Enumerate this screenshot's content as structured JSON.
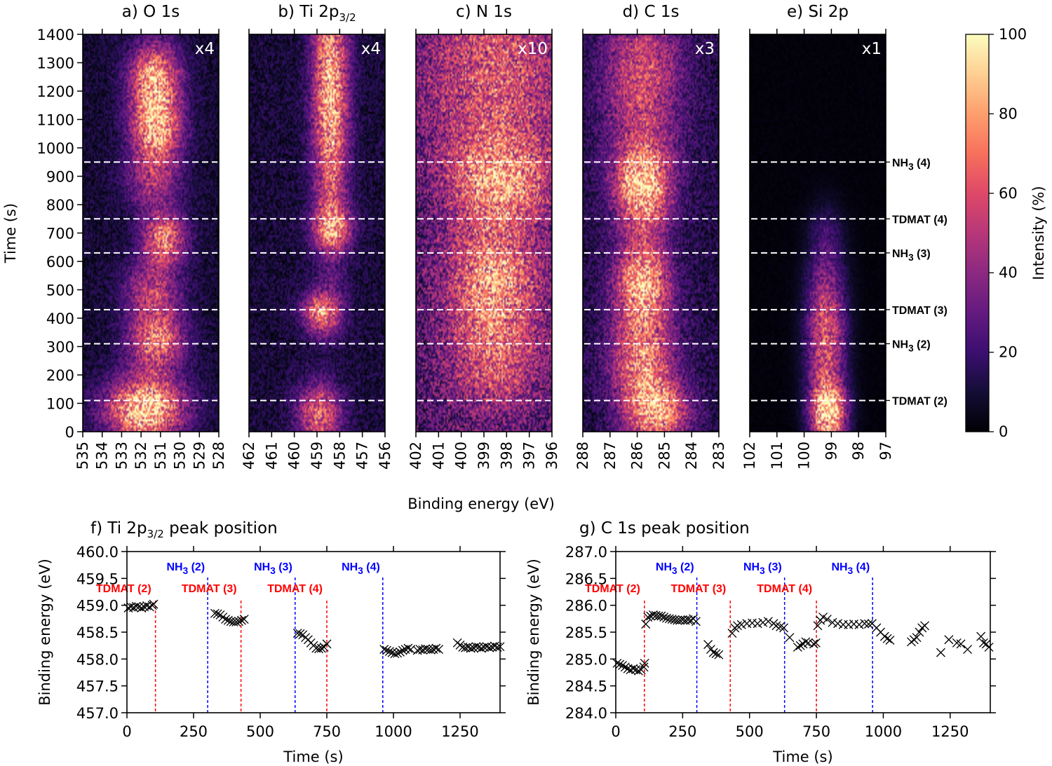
{
  "chart_data": [
    {
      "type": "heatmap",
      "shared": {
        "ylabel": "Time (s)",
        "yticks": [
          0,
          100,
          200,
          300,
          400,
          500,
          600,
          700,
          800,
          900,
          1000,
          1100,
          1200,
          1300,
          1400
        ],
        "ylim": [
          0,
          1400
        ],
        "xlabel": "Binding energy (eV)",
        "colormap": "magma",
        "colorbar": {
          "label": "Intensity (%)",
          "ticks": [
            0,
            20,
            40,
            60,
            80,
            100
          ],
          "range": [
            0,
            100
          ]
        },
        "event_lines": [
          {
            "label": "TDMAT (2)",
            "time": 110
          },
          {
            "label": "NH3 (2)",
            "time": 310
          },
          {
            "label": "TDMAT (3)",
            "time": 430
          },
          {
            "label": "NH3 (3)",
            "time": 630
          },
          {
            "label": "TDMAT (4)",
            "time": 750
          },
          {
            "label": "NH3 (4)",
            "time": 950
          }
        ]
      },
      "panels": [
        {
          "id": "a",
          "title_pre": "a) O 1s",
          "title_sub": "",
          "scale": "x4",
          "xlim": [
            535,
            528
          ],
          "xticks": [
            535,
            534,
            533,
            532,
            531,
            530,
            529,
            528
          ],
          "noise": 0.18,
          "blobs": [
            [
              531.3,
              1240,
              0.9,
              70,
              0.75
            ],
            [
              531.2,
              1060,
              0.9,
              60,
              0.7
            ],
            [
              531.4,
              880,
              1.0,
              60,
              0.35
            ],
            [
              530.8,
              680,
              0.8,
              50,
              0.6
            ],
            [
              531.4,
              500,
              1.0,
              60,
              0.4
            ],
            [
              531.2,
              320,
              1.0,
              60,
              0.6
            ],
            [
              531.8,
              80,
              1.4,
              60,
              0.9
            ]
          ]
        },
        {
          "id": "b",
          "title_pre": "b) Ti 2p",
          "title_sub": "3/2",
          "scale": "x4",
          "xlim": [
            462,
            456
          ],
          "xticks": [
            462,
            461,
            460,
            459,
            458,
            457,
            456
          ],
          "noise": 0.2,
          "blobs": [
            [
              458.4,
              1200,
              0.55,
              280,
              0.75
            ],
            [
              458.3,
              720,
              0.6,
              40,
              0.5
            ],
            [
              458.8,
              420,
              0.6,
              40,
              0.6
            ],
            [
              458.9,
              60,
              0.7,
              60,
              0.55
            ]
          ]
        },
        {
          "id": "c",
          "title_pre": "c) N 1s",
          "title_sub": "",
          "scale": "x10",
          "xlim": [
            402,
            396
          ],
          "xticks": [
            402,
            401,
            400,
            399,
            398,
            397,
            396
          ],
          "noise": 0.45,
          "blobs": [
            [
              398.5,
              1250,
              2.2,
              200,
              0.4
            ],
            [
              398.3,
              880,
              1.5,
              80,
              0.5
            ],
            [
              398.6,
              560,
              1.4,
              100,
              0.5
            ],
            [
              398.5,
              280,
              1.5,
              120,
              0.4
            ]
          ]
        },
        {
          "id": "d",
          "title_pre": "d) C 1s",
          "title_sub": "",
          "scale": "x3",
          "xlim": [
            288,
            283
          ],
          "xticks": [
            288,
            287,
            286,
            285,
            284,
            283
          ],
          "noise": 0.25,
          "blobs": [
            [
              285.8,
              1250,
              1.0,
              180,
              0.45
            ],
            [
              285.8,
              860,
              0.7,
              80,
              0.75
            ],
            [
              285.8,
              530,
              0.7,
              80,
              0.7
            ],
            [
              285.8,
              250,
              0.8,
              100,
              0.6
            ],
            [
              285.2,
              60,
              0.8,
              60,
              0.6
            ]
          ]
        },
        {
          "id": "e",
          "title_pre": "e) Si 2p",
          "title_sub": "",
          "scale": "x1",
          "xlim": [
            102,
            97
          ],
          "xticks": [
            102,
            101,
            100,
            99,
            98,
            97
          ],
          "noise": 0.03,
          "blobs": [
            [
              99.2,
              700,
              0.45,
              60,
              0.12
            ],
            [
              99.2,
              450,
              0.5,
              120,
              0.3
            ],
            [
              99.2,
              280,
              0.5,
              120,
              0.4
            ],
            [
              99.1,
              60,
              0.45,
              60,
              0.9
            ]
          ]
        }
      ]
    },
    {
      "type": "scatter",
      "id": "f",
      "title_pre": "f) Ti 2p",
      "title_sub": "3/2",
      "title_post": " peak position",
      "xlabel": "Time (s)",
      "ylabel": "Binding energy (eV)",
      "xlim": [
        0,
        1400
      ],
      "ylim": [
        457.0,
        460.0
      ],
      "xticks": [
        0,
        250,
        500,
        750,
        1000,
        1250
      ],
      "yticks": [
        "457.0",
        "457.5",
        "458.0",
        "458.5",
        "459.0",
        "459.5",
        "460.0"
      ],
      "marker": "x",
      "vlines": [
        {
          "label": "TDMAT (2)",
          "x": 107,
          "color": "#ff0000",
          "row": "lower"
        },
        {
          "label": "NH3 (2)",
          "x": 303,
          "color": "#0000ff",
          "row": "upper"
        },
        {
          "label": "TDMAT (3)",
          "x": 428,
          "color": "#ff0000",
          "row": "lower"
        },
        {
          "label": "NH3 (3)",
          "x": 631,
          "color": "#0000ff",
          "row": "upper"
        },
        {
          "label": "TDMAT (4)",
          "x": 750,
          "color": "#ff0000",
          "row": "lower"
        },
        {
          "label": "NH3 (4)",
          "x": 960,
          "color": "#0000ff",
          "row": "upper"
        }
      ],
      "points": [
        [
          5,
          458.95
        ],
        [
          15,
          458.97
        ],
        [
          25,
          458.96
        ],
        [
          35,
          458.98
        ],
        [
          45,
          458.97
        ],
        [
          55,
          458.95
        ],
        [
          65,
          458.97
        ],
        [
          75,
          458.99
        ],
        [
          85,
          458.97
        ],
        [
          95,
          459.0
        ],
        [
          100,
          459.02
        ],
        [
          330,
          458.85
        ],
        [
          340,
          458.84
        ],
        [
          350,
          458.82
        ],
        [
          360,
          458.78
        ],
        [
          370,
          458.74
        ],
        [
          380,
          458.72
        ],
        [
          390,
          458.7
        ],
        [
          400,
          458.69
        ],
        [
          410,
          458.69
        ],
        [
          420,
          458.7
        ],
        [
          430,
          458.72
        ],
        [
          440,
          458.74
        ],
        [
          640,
          458.48
        ],
        [
          650,
          458.47
        ],
        [
          660,
          458.45
        ],
        [
          670,
          458.4
        ],
        [
          680,
          458.36
        ],
        [
          690,
          458.3
        ],
        [
          700,
          458.25
        ],
        [
          710,
          458.2
        ],
        [
          720,
          458.19
        ],
        [
          730,
          458.2
        ],
        [
          740,
          458.22
        ],
        [
          750,
          458.28
        ],
        [
          965,
          458.18
        ],
        [
          975,
          458.16
        ],
        [
          985,
          458.14
        ],
        [
          995,
          458.12
        ],
        [
          1005,
          458.1
        ],
        [
          1015,
          458.11
        ],
        [
          1025,
          458.13
        ],
        [
          1035,
          458.16
        ],
        [
          1045,
          458.18
        ],
        [
          1055,
          458.2
        ],
        [
          1065,
          458.18
        ],
        [
          1090,
          458.16
        ],
        [
          1100,
          458.18
        ],
        [
          1110,
          458.17
        ],
        [
          1120,
          458.19
        ],
        [
          1130,
          458.18
        ],
        [
          1140,
          458.17
        ],
        [
          1150,
          458.18
        ],
        [
          1160,
          458.2
        ],
        [
          1170,
          458.18
        ],
        [
          1240,
          458.3
        ],
        [
          1250,
          458.26
        ],
        [
          1260,
          458.22
        ],
        [
          1270,
          458.21
        ],
        [
          1280,
          458.22
        ],
        [
          1290,
          458.2
        ],
        [
          1300,
          458.21
        ],
        [
          1310,
          458.23
        ],
        [
          1320,
          458.22
        ],
        [
          1330,
          458.2
        ],
        [
          1340,
          458.22
        ],
        [
          1350,
          458.23
        ],
        [
          1360,
          458.21
        ],
        [
          1370,
          458.22
        ],
        [
          1380,
          458.24
        ],
        [
          1390,
          458.22
        ],
        [
          1400,
          458.23
        ]
      ]
    },
    {
      "type": "scatter",
      "id": "g",
      "title_pre": "g) C 1s peak position",
      "title_sub": "",
      "title_post": "",
      "xlabel": "Time (s)",
      "ylabel": "Binding energy (eV)",
      "xlim": [
        0,
        1400
      ],
      "ylim": [
        284.0,
        287.0
      ],
      "xticks": [
        0,
        250,
        500,
        750,
        1000,
        1250
      ],
      "yticks": [
        "284.0",
        "284.5",
        "285.0",
        "285.5",
        "286.0",
        "286.5",
        "287.0"
      ],
      "marker": "x",
      "vlines": [
        {
          "label": "TDMAT (2)",
          "x": 107,
          "color": "#ff0000",
          "row": "lower"
        },
        {
          "label": "NH3 (2)",
          "x": 303,
          "color": "#0000ff",
          "row": "upper"
        },
        {
          "label": "TDMAT (3)",
          "x": 428,
          "color": "#ff0000",
          "row": "lower"
        },
        {
          "label": "NH3 (3)",
          "x": 631,
          "color": "#0000ff",
          "row": "upper"
        },
        {
          "label": "TDMAT (4)",
          "x": 750,
          "color": "#ff0000",
          "row": "lower"
        },
        {
          "label": "NH3 (4)",
          "x": 960,
          "color": "#0000ff",
          "row": "upper"
        }
      ],
      "points": [
        [
          5,
          284.92
        ],
        [
          15,
          284.9
        ],
        [
          25,
          284.88
        ],
        [
          35,
          284.85
        ],
        [
          45,
          284.82
        ],
        [
          55,
          284.8
        ],
        [
          65,
          284.82
        ],
        [
          75,
          284.8
        ],
        [
          85,
          284.78
        ],
        [
          95,
          284.8
        ],
        [
          105,
          284.85
        ],
        [
          108,
          284.92
        ],
        [
          112,
          285.65
        ],
        [
          120,
          285.78
        ],
        [
          130,
          285.8
        ],
        [
          140,
          285.82
        ],
        [
          150,
          285.81
        ],
        [
          160,
          285.8
        ],
        [
          170,
          285.8
        ],
        [
          180,
          285.78
        ],
        [
          190,
          285.76
        ],
        [
          200,
          285.75
        ],
        [
          210,
          285.74
        ],
        [
          220,
          285.73
        ],
        [
          230,
          285.72
        ],
        [
          240,
          285.72
        ],
        [
          250,
          285.73
        ],
        [
          260,
          285.72
        ],
        [
          270,
          285.73
        ],
        [
          280,
          285.72
        ],
        [
          290,
          285.75
        ],
        [
          300,
          285.7
        ],
        [
          345,
          285.27
        ],
        [
          355,
          285.18
        ],
        [
          365,
          285.12
        ],
        [
          375,
          285.1
        ],
        [
          385,
          285.08
        ],
        [
          435,
          285.48
        ],
        [
          445,
          285.58
        ],
        [
          455,
          285.62
        ],
        [
          470,
          285.64
        ],
        [
          490,
          285.66
        ],
        [
          510,
          285.67
        ],
        [
          530,
          285.66
        ],
        [
          550,
          285.68
        ],
        [
          570,
          285.7
        ],
        [
          590,
          285.66
        ],
        [
          600,
          285.62
        ],
        [
          615,
          285.6
        ],
        [
          628,
          285.58
        ],
        [
          650,
          285.4
        ],
        [
          680,
          285.22
        ],
        [
          690,
          285.25
        ],
        [
          700,
          285.28
        ],
        [
          710,
          285.32
        ],
        [
          720,
          285.3
        ],
        [
          740,
          285.28
        ],
        [
          748,
          285.3
        ],
        [
          755,
          285.62
        ],
        [
          765,
          285.72
        ],
        [
          775,
          285.78
        ],
        [
          790,
          285.74
        ],
        [
          810,
          285.68
        ],
        [
          830,
          285.66
        ],
        [
          850,
          285.64
        ],
        [
          870,
          285.64
        ],
        [
          890,
          285.65
        ],
        [
          910,
          285.64
        ],
        [
          930,
          285.66
        ],
        [
          945,
          285.65
        ],
        [
          958,
          285.66
        ],
        [
          975,
          285.58
        ],
        [
          990,
          285.5
        ],
        [
          1005,
          285.42
        ],
        [
          1015,
          285.38
        ],
        [
          1025,
          285.35
        ],
        [
          1105,
          285.32
        ],
        [
          1115,
          285.36
        ],
        [
          1125,
          285.4
        ],
        [
          1135,
          285.5
        ],
        [
          1145,
          285.58
        ],
        [
          1155,
          285.62
        ],
        [
          1215,
          285.12
        ],
        [
          1245,
          285.36
        ],
        [
          1275,
          285.3
        ],
        [
          1290,
          285.28
        ],
        [
          1315,
          285.18
        ],
        [
          1365,
          285.42
        ],
        [
          1375,
          285.3
        ],
        [
          1385,
          285.28
        ],
        [
          1395,
          285.22
        ]
      ]
    }
  ]
}
